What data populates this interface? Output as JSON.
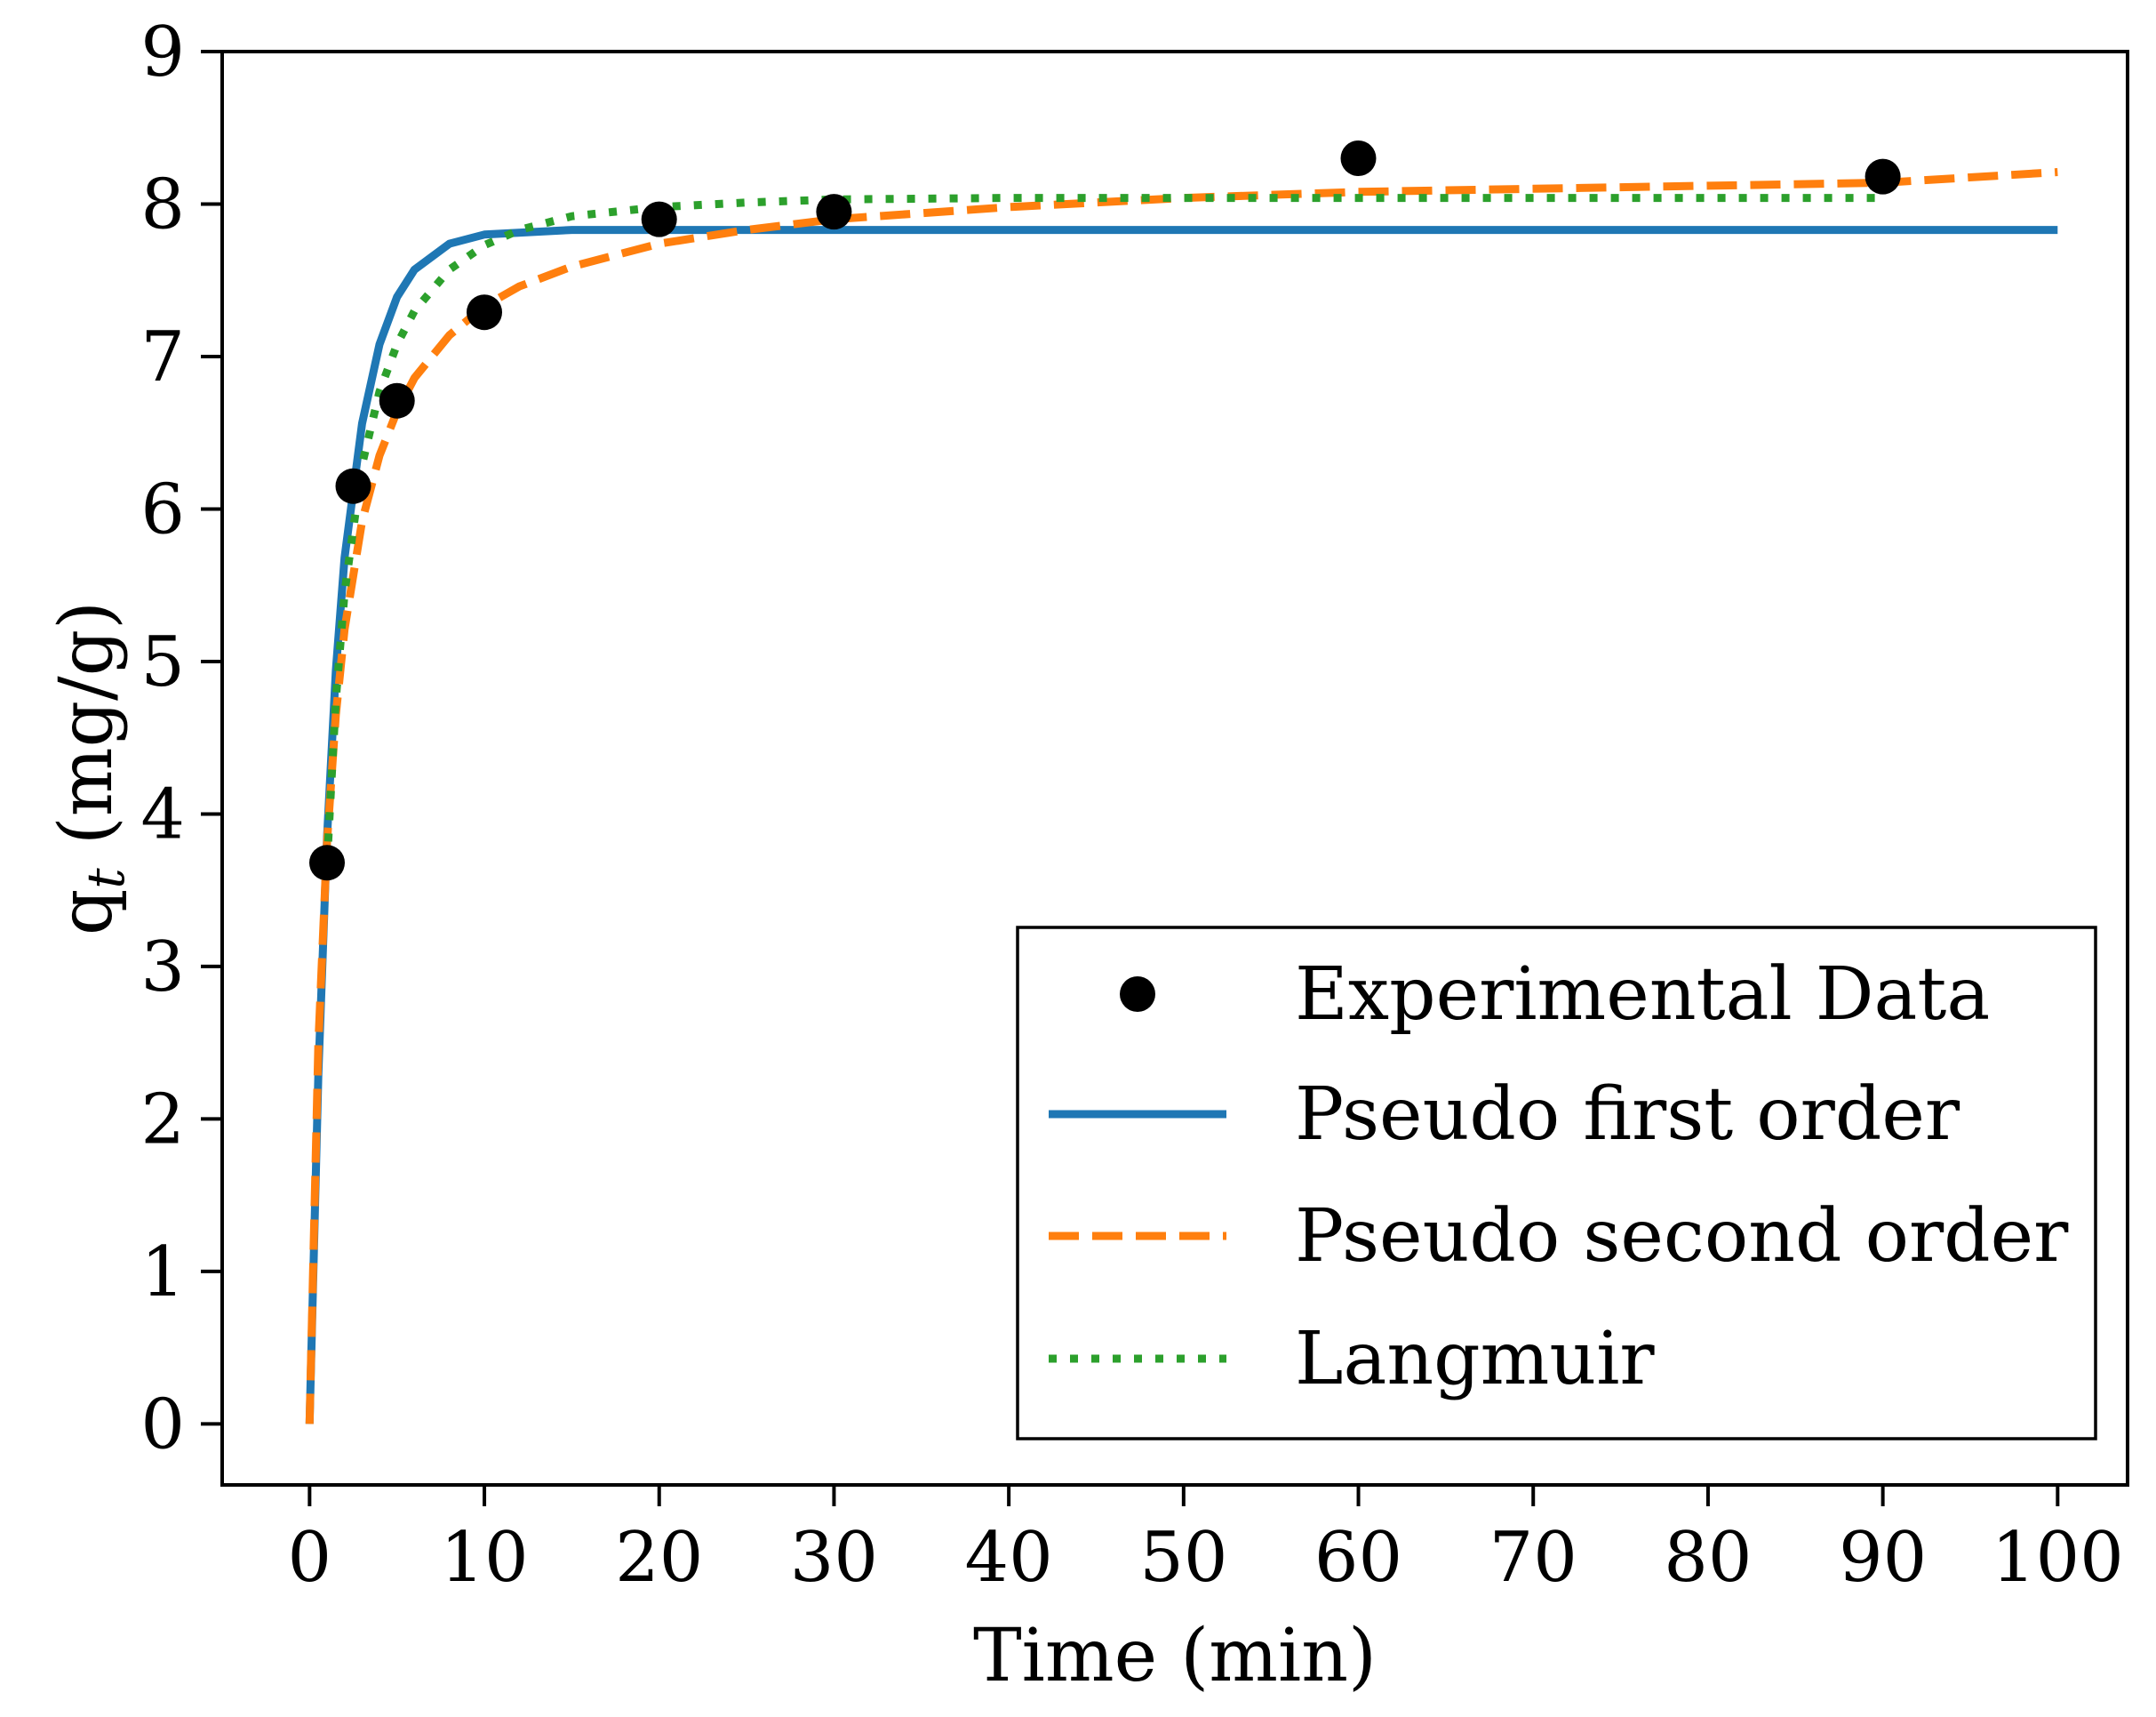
{
  "chart_data": {
    "type": "line",
    "title": "",
    "xlabel": "Time (min)",
    "ylabel_main": "q",
    "ylabel_sub": "t",
    "ylabel_rest": " (mg/g)",
    "xlim": [
      -5,
      104
    ],
    "ylim": [
      -0.4,
      9
    ],
    "xticks": [
      0,
      10,
      20,
      30,
      40,
      50,
      60,
      70,
      80,
      90,
      100
    ],
    "yticks": [
      0,
      1,
      2,
      3,
      4,
      5,
      6,
      7,
      8,
      9
    ],
    "grid": false,
    "legend_position": "lower-right",
    "series": [
      {
        "name": "Experimental Data",
        "kind": "scatter",
        "color": "#000000",
        "x": [
          1,
          2.5,
          5,
          10,
          20,
          30,
          60,
          90
        ],
        "y": [
          3.68,
          6.15,
          6.71,
          7.29,
          7.9,
          7.95,
          8.3,
          8.18
        ]
      },
      {
        "name": "Pseudo first order",
        "kind": "line",
        "style": "solid",
        "color": "#1f77b4",
        "x": [
          0,
          0.5,
          1,
          1.5,
          2,
          3,
          4,
          5,
          6,
          8,
          10,
          15,
          20,
          30,
          60,
          90,
          100
        ],
        "y": [
          0,
          2.29,
          3.85,
          4.94,
          5.68,
          6.56,
          7.08,
          7.39,
          7.57,
          7.74,
          7.8,
          7.83,
          7.83,
          7.83,
          7.83,
          7.83,
          7.83
        ]
      },
      {
        "name": "Pseudo second order",
        "kind": "line",
        "style": "dashed",
        "color": "#ff7f0e",
        "x": [
          0,
          0.5,
          1,
          1.5,
          2,
          3,
          4,
          5,
          6,
          8,
          10,
          12,
          15,
          20,
          25,
          30,
          40,
          50,
          60,
          70,
          80,
          90,
          100
        ],
        "y": [
          0,
          2.49,
          3.82,
          4.65,
          5.21,
          5.92,
          6.35,
          6.64,
          6.86,
          7.14,
          7.33,
          7.46,
          7.59,
          7.74,
          7.83,
          7.9,
          7.98,
          8.04,
          8.08,
          8.1,
          8.12,
          8.14,
          8.21
        ]
      },
      {
        "name": "Langmuir",
        "kind": "line",
        "style": "dotted",
        "color": "#2ca02c",
        "x": [
          1,
          1.5,
          2,
          3,
          4,
          5,
          6,
          8,
          10,
          12,
          15,
          20,
          25,
          30,
          40,
          60,
          90
        ],
        "y": [
          3.68,
          4.75,
          5.45,
          6.29,
          6.77,
          7.08,
          7.3,
          7.57,
          7.73,
          7.83,
          7.92,
          7.98,
          8.01,
          8.03,
          8.04,
          8.04,
          8.04
        ]
      }
    ]
  }
}
